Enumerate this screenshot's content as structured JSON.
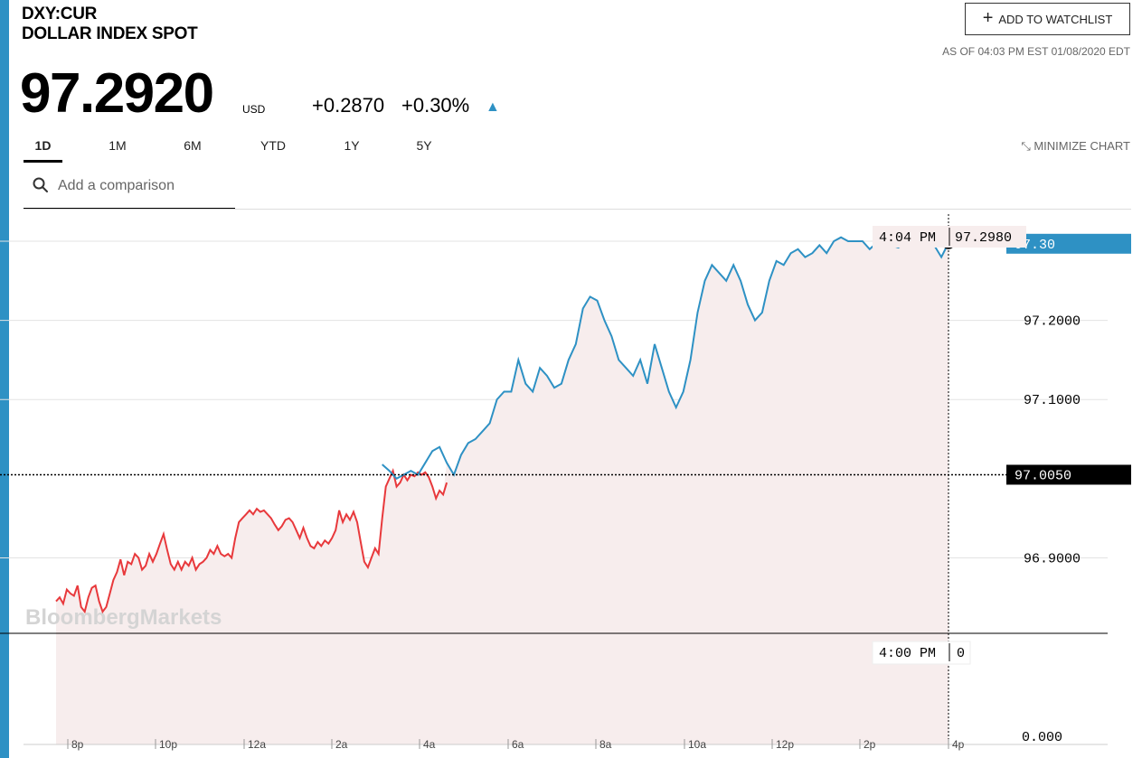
{
  "header": {
    "ticker": "DXY:CUR",
    "name": "DOLLAR INDEX SPOT",
    "price": "97.2920",
    "currency": "USD",
    "change": "+0.2870",
    "change_pct": "+0.30%",
    "watchlist_label": "ADD TO WATCHLIST",
    "as_of": "AS OF 04:03 PM EST 01/08/2020 EDT"
  },
  "tabs": [
    "1D",
    "1M",
    "6M",
    "YTD",
    "1Y",
    "5Y"
  ],
  "active_tab": "1D",
  "minimize_label": "MINIMIZE CHART",
  "search": {
    "placeholder": "Add a comparison"
  },
  "colors": {
    "accent": "#2e91c4",
    "down": "#e8393c",
    "fill": "#f7eded"
  },
  "chart_data": {
    "type": "line",
    "x_ticks": [
      "8p",
      "10p",
      "12a",
      "2a",
      "4a",
      "6a",
      "8a",
      "10a",
      "12p",
      "2p",
      "4p"
    ],
    "y_ticks": [
      "97.2000",
      "97.1000",
      "96.9000"
    ],
    "y_range": [
      96.84,
      97.34
    ],
    "volume_tick": "0.000",
    "reference_value": 97.005,
    "reference_label": "97.0050",
    "last_value_label": "97.30",
    "crosshair_time": "4:04 PM",
    "crosshair_value": "97.2980",
    "volume_time": "4:00 PM",
    "volume_value": "0",
    "watermark": "BloombergMarkets",
    "series": [
      {
        "values": [
          [
            0,
            96.845
          ],
          [
            1,
            96.85
          ],
          [
            2,
            96.842
          ],
          [
            3,
            96.86
          ],
          [
            4,
            96.855
          ],
          [
            5,
            96.852
          ],
          [
            6,
            96.865
          ],
          [
            7,
            96.838
          ],
          [
            8,
            96.832
          ],
          [
            9,
            96.85
          ],
          [
            10,
            96.862
          ],
          [
            11,
            96.865
          ],
          [
            12,
            96.845
          ],
          [
            13,
            96.832
          ],
          [
            14,
            96.838
          ],
          [
            15,
            96.855
          ],
          [
            16,
            96.872
          ],
          [
            17,
            96.882
          ],
          [
            18,
            96.898
          ],
          [
            19,
            96.878
          ],
          [
            20,
            96.895
          ],
          [
            21,
            96.892
          ],
          [
            22,
            96.905
          ],
          [
            23,
            96.9
          ],
          [
            24,
            96.885
          ],
          [
            25,
            96.89
          ],
          [
            26,
            96.905
          ],
          [
            27,
            96.895
          ],
          [
            28,
            96.905
          ],
          [
            29,
            96.918
          ],
          [
            30,
            96.93
          ],
          [
            31,
            96.91
          ],
          [
            32,
            96.892
          ],
          [
            33,
            96.885
          ],
          [
            34,
            96.895
          ],
          [
            35,
            96.885
          ],
          [
            36,
            96.895
          ],
          [
            37,
            96.89
          ],
          [
            38,
            96.9
          ],
          [
            39,
            96.885
          ],
          [
            40,
            96.892
          ],
          [
            41,
            96.895
          ],
          [
            42,
            96.9
          ],
          [
            43,
            96.91
          ],
          [
            44,
            96.905
          ],
          [
            45,
            96.915
          ],
          [
            46,
            96.905
          ],
          [
            47,
            96.902
          ],
          [
            48,
            96.905
          ],
          [
            49,
            96.9
          ],
          [
            50,
            96.925
          ],
          [
            51,
            96.945
          ],
          [
            52,
            96.95
          ],
          [
            53,
            96.955
          ],
          [
            54,
            96.96
          ],
          [
            55,
            96.955
          ],
          [
            56,
            96.962
          ],
          [
            57,
            96.958
          ],
          [
            58,
            96.96
          ],
          [
            59,
            96.955
          ],
          [
            60,
            96.95
          ],
          [
            61,
            96.942
          ],
          [
            62,
            96.935
          ],
          [
            63,
            96.94
          ],
          [
            64,
            96.948
          ],
          [
            65,
            96.95
          ],
          [
            66,
            96.945
          ],
          [
            67,
            96.935
          ],
          [
            68,
            96.925
          ],
          [
            69,
            96.938
          ],
          [
            70,
            96.925
          ],
          [
            71,
            96.915
          ],
          [
            72,
            96.912
          ],
          [
            73,
            96.92
          ],
          [
            74,
            96.915
          ],
          [
            75,
            96.922
          ],
          [
            76,
            96.918
          ],
          [
            77,
            96.925
          ],
          [
            78,
            96.935
          ],
          [
            79,
            96.96
          ],
          [
            80,
            96.945
          ],
          [
            81,
            96.955
          ],
          [
            82,
            96.948
          ],
          [
            83,
            96.958
          ],
          [
            84,
            96.945
          ],
          [
            85,
            96.92
          ],
          [
            86,
            96.895
          ],
          [
            87,
            96.888
          ],
          [
            88,
            96.9
          ],
          [
            89,
            96.912
          ],
          [
            90,
            96.905
          ],
          [
            91,
            96.95
          ],
          [
            92,
            96.99
          ],
          [
            93,
            97.0
          ],
          [
            94,
            97.01
          ],
          [
            95,
            96.99
          ],
          [
            96,
            96.995
          ],
          [
            97,
            97.005
          ],
          [
            98,
            96.998
          ],
          [
            99,
            97.005
          ],
          [
            100,
            97.003
          ],
          [
            101,
            97.008
          ],
          [
            102,
            97.005
          ],
          [
            103,
            97.008
          ],
          [
            104,
            97.002
          ],
          [
            105,
            96.99
          ],
          [
            106,
            96.975
          ],
          [
            107,
            96.985
          ],
          [
            108,
            96.98
          ],
          [
            109,
            96.995
          ]
        ]
      },
      {
        "values": [
          [
            91,
            97.018
          ],
          [
            93,
            97.01
          ],
          [
            95,
            97.0
          ],
          [
            97,
            97.005
          ],
          [
            99,
            97.01
          ],
          [
            101,
            97.005
          ],
          [
            103,
            97.02
          ],
          [
            105,
            97.035
          ],
          [
            107,
            97.04
          ],
          [
            109,
            97.02
          ],
          [
            111,
            97.005
          ],
          [
            113,
            97.03
          ],
          [
            115,
            97.045
          ],
          [
            117,
            97.05
          ],
          [
            119,
            97.06
          ],
          [
            121,
            97.07
          ],
          [
            123,
            97.1
          ],
          [
            125,
            97.11
          ],
          [
            127,
            97.11
          ],
          [
            129,
            97.15
          ],
          [
            131,
            97.12
          ],
          [
            133,
            97.11
          ],
          [
            135,
            97.14
          ],
          [
            137,
            97.13
          ],
          [
            139,
            97.115
          ],
          [
            141,
            97.12
          ],
          [
            143,
            97.15
          ],
          [
            145,
            97.17
          ],
          [
            147,
            97.215
          ],
          [
            149,
            97.23
          ],
          [
            151,
            97.225
          ],
          [
            153,
            97.2
          ],
          [
            155,
            97.18
          ],
          [
            157,
            97.15
          ],
          [
            159,
            97.14
          ],
          [
            161,
            97.13
          ],
          [
            163,
            97.15
          ],
          [
            165,
            97.12
          ],
          [
            167,
            97.17
          ],
          [
            169,
            97.14
          ],
          [
            171,
            97.11
          ],
          [
            173,
            97.09
          ],
          [
            175,
            97.11
          ],
          [
            177,
            97.15
          ],
          [
            179,
            97.21
          ],
          [
            181,
            97.25
          ],
          [
            183,
            97.27
          ],
          [
            185,
            97.26
          ],
          [
            187,
            97.25
          ],
          [
            189,
            97.27
          ],
          [
            191,
            97.25
          ],
          [
            193,
            97.22
          ],
          [
            195,
            97.2
          ],
          [
            197,
            97.21
          ],
          [
            199,
            97.25
          ],
          [
            201,
            97.275
          ],
          [
            203,
            97.27
          ],
          [
            205,
            97.285
          ],
          [
            207,
            97.29
          ],
          [
            209,
            97.28
          ],
          [
            211,
            97.285
          ],
          [
            213,
            97.295
          ],
          [
            215,
            97.285
          ],
          [
            217,
            97.3
          ],
          [
            219,
            97.305
          ],
          [
            221,
            97.3
          ],
          [
            223,
            97.3
          ],
          [
            225,
            97.3
          ],
          [
            227,
            97.29
          ],
          [
            229,
            97.298
          ],
          [
            231,
            97.3
          ],
          [
            233,
            97.295
          ],
          [
            235,
            97.292
          ],
          [
            237,
            97.298
          ],
          [
            239,
            97.3
          ],
          [
            241,
            97.296
          ],
          [
            243,
            97.298
          ],
          [
            245,
            97.295
          ],
          [
            247,
            97.28
          ],
          [
            249,
            97.298
          ]
        ]
      }
    ]
  }
}
